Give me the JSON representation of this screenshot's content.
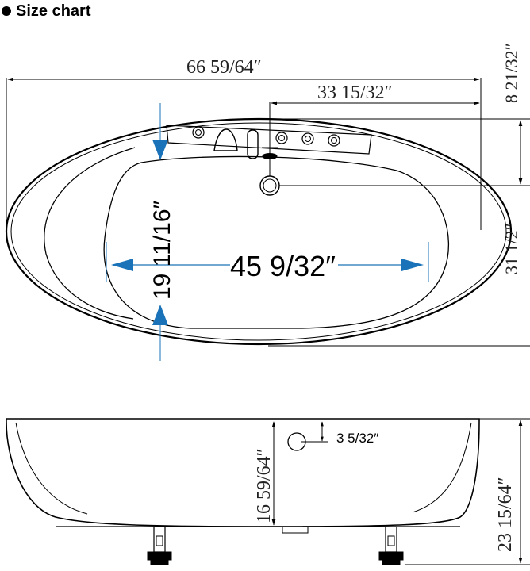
{
  "header": {
    "title": "Size chart"
  },
  "top_view": {
    "overall_length": "66 59/64″",
    "half_length": "33 15/32″",
    "side_width_top": "8 21/32″",
    "side_width_total": "31 1/2″",
    "inner_length": "45 9/32″",
    "inner_width": "19 11/16″"
  },
  "side_view": {
    "depth": "16 59/64″",
    "drain_offset": "3 5/32″",
    "overall_height": "23 15/64″"
  },
  "colors": {
    "line": "#000000",
    "accent": "#1a73b8"
  }
}
